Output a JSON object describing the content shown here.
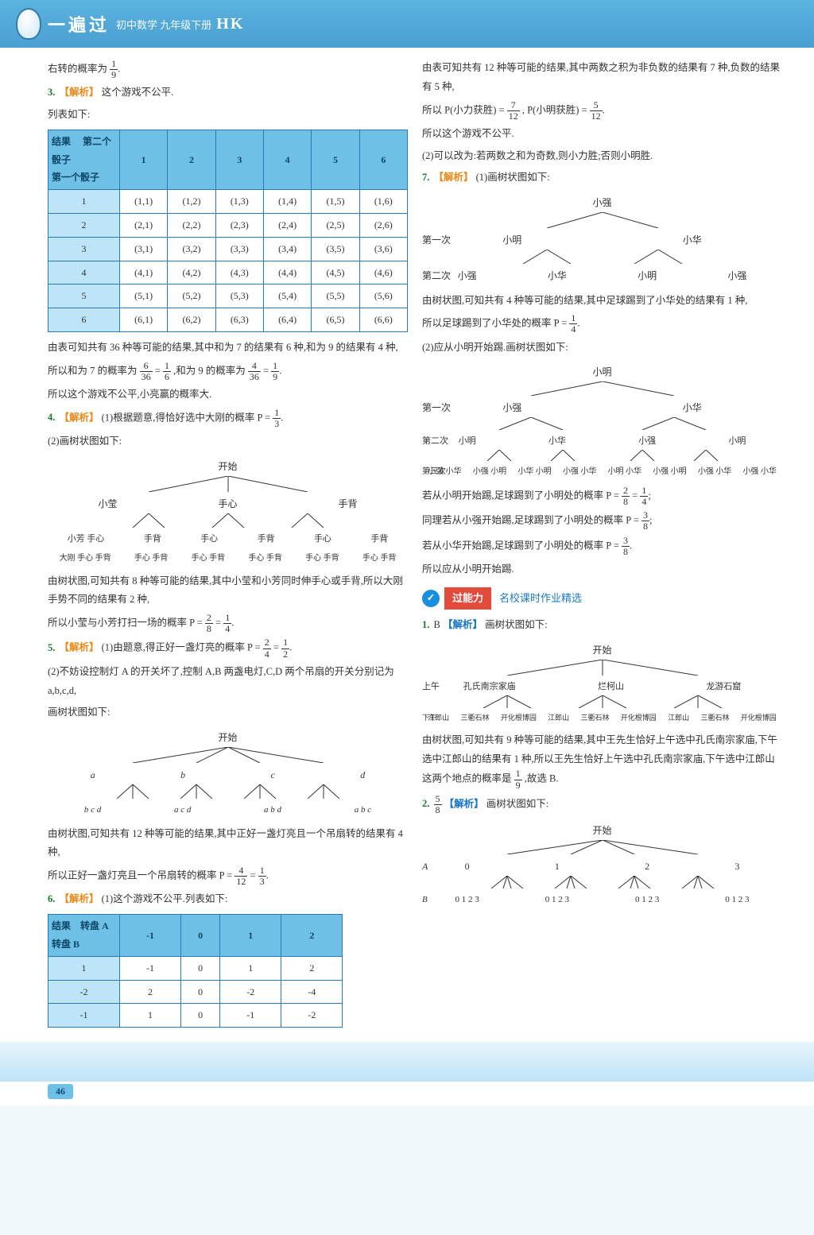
{
  "header": {
    "series": "一遍过",
    "subject": "初中数学 九年级下册",
    "code": "HK"
  },
  "left": {
    "intro": "右转的概率为",
    "intro_frac_n": "1",
    "intro_frac_d": "9",
    "q3_num": "3.",
    "q3_tag": "【解析】",
    "q3_a": "这个游戏不公平.",
    "q3_b": "列表如下:",
    "dice_header_result": "结果",
    "dice_header_col": "第二个骰子",
    "dice_header_row": "第一个骰子",
    "dice_cols": [
      "1",
      "2",
      "3",
      "4",
      "5",
      "6"
    ],
    "dice_rows": [
      "1",
      "2",
      "3",
      "4",
      "5",
      "6"
    ],
    "dice_cells": [
      [
        "(1,1)",
        "(1,2)",
        "(1,3)",
        "(1,4)",
        "(1,5)",
        "(1,6)"
      ],
      [
        "(2,1)",
        "(2,2)",
        "(2,3)",
        "(2,4)",
        "(2,5)",
        "(2,6)"
      ],
      [
        "(3,1)",
        "(3,2)",
        "(3,3)",
        "(3,4)",
        "(3,5)",
        "(3,6)"
      ],
      [
        "(4,1)",
        "(4,2)",
        "(4,3)",
        "(4,4)",
        "(4,5)",
        "(4,6)"
      ],
      [
        "(5,1)",
        "(5,2)",
        "(5,3)",
        "(5,4)",
        "(5,5)",
        "(5,6)"
      ],
      [
        "(6,1)",
        "(6,2)",
        "(6,3)",
        "(6,4)",
        "(6,5)",
        "(6,6)"
      ]
    ],
    "q3_c": "由表可知共有 36 种等可能的结果,其中和为 7 的结果有 6 种,和为 9 的结果有 4 种,",
    "q3_d_pre": "所以和为 7 的概率为",
    "q3_d_f1n": "6",
    "q3_d_f1d": "36",
    "q3_d_eq": "=",
    "q3_d_f2n": "1",
    "q3_d_f2d": "6",
    "q3_d_mid": ",和为 9 的概率为",
    "q3_d_f3n": "4",
    "q3_d_f3d": "36",
    "q3_d_f4n": "1",
    "q3_d_f4d": "9",
    "q3_e": "所以这个游戏不公平,小亮赢的概率大.",
    "q4_num": "4.",
    "q4_tag": "【解析】",
    "q4_a": "(1)根据题意,得恰好选中大刚的概率 P =",
    "q4_a_fn": "1",
    "q4_a_fd": "3",
    "q4_b": "(2)画树状图如下:",
    "tree4_root": "开始",
    "tree4_l1": [
      "小莹",
      "手心",
      "手背"
    ],
    "tree4_l2": [
      "小芳 手心",
      "手背",
      "手心",
      "手背",
      "手心",
      "手背"
    ],
    "tree4_l3": [
      "大刚 手心 手背",
      "手心 手背",
      "手心 手背",
      "手心 手背",
      "手心 手背",
      "手心 手背"
    ],
    "q4_c": "由树状图,可知共有 8 种等可能的结果,其中小莹和小芳同时伸手心或手背,所以大刚手势不同的结果有 2 种,",
    "q4_d_pre": "所以小莹与小芳打扫一场的概率 P =",
    "q4_d_f1n": "2",
    "q4_d_f1d": "8",
    "q4_d_f2n": "1",
    "q4_d_f2d": "4",
    "q5_num": "5.",
    "q5_tag": "【解析】",
    "q5_a": "(1)由题意,得正好一盏灯亮的概率 P =",
    "q5_a_f1n": "2",
    "q5_a_f1d": "4",
    "q5_a_f2n": "1",
    "q5_a_f2d": "2",
    "q5_b": "(2)不妨设控制灯 A 的开关坏了,控制 A,B 两盏电灯,C,D 两个吊扇的开关分别记为 a,b,c,d,",
    "q5_c": "画树状图如下:",
    "tree5_root": "开始",
    "tree5_l1": [
      "a",
      "b",
      "c",
      "d"
    ],
    "tree5_l2": [
      "b  c  d",
      "a  c  d",
      "a  b  d",
      "a  b  c"
    ],
    "q5_d": "由树状图,可知共有 12 种等可能的结果,其中正好一盏灯亮且一个吊扇转的结果有 4 种,",
    "q5_e_pre": "所以正好一盏灯亮且一个吊扇转的概率 P =",
    "q5_e_f1n": "4",
    "q5_e_f1d": "12",
    "q5_e_f2n": "1",
    "q5_e_f2d": "3",
    "q6_num": "6.",
    "q6_tag": "【解析】",
    "q6_a": "(1)这个游戏不公平.列表如下:",
    "spin_header_result": "结果",
    "spin_header_col": "转盘 A",
    "spin_header_row": "转盘 B",
    "spin_cols": [
      "-1",
      "0",
      "1",
      "2"
    ],
    "spin_rows": [
      "1",
      "-2",
      "-1"
    ],
    "spin_cells": [
      [
        "-1",
        "0",
        "1",
        "2"
      ],
      [
        "2",
        "0",
        "-2",
        "-4"
      ],
      [
        "1",
        "0",
        "-1",
        "-2"
      ]
    ]
  },
  "right": {
    "r1": "由表可知共有 12 种等可能的结果,其中两数之积为非负数的结果有 7 种,负数的结果有 5 种,",
    "r2_pre": "所以 P(小力获胜) =",
    "r2_f1n": "7",
    "r2_f1d": "12",
    "r2_mid": ", P(小明获胜) =",
    "r2_f2n": "5",
    "r2_f2d": "12",
    "r3": "所以这个游戏不公平.",
    "r4": "(2)可以改为:若两数之和为奇数,则小力胜;否则小明胜.",
    "q7_num": "7.",
    "q7_tag": "【解析】",
    "q7_a": "(1)画树状图如下:",
    "tree7_root": "小强",
    "tree7_l1_label": "第一次",
    "tree7_l1": [
      "小明",
      "小华"
    ],
    "tree7_l2_label": "第二次",
    "tree7_l2": [
      "小强",
      "小华",
      "小明",
      "小强"
    ],
    "q7_b": "由树状图,可知共有 4 种等可能的结果,其中足球踢到了小华处的结果有 1 种,",
    "q7_c_pre": "所以足球踢到了小华处的概率 P =",
    "q7_c_fn": "1",
    "q7_c_fd": "4",
    "q7_d": "(2)应从小明开始踢.画树状图如下:",
    "tree7b_root": "小明",
    "tree7b_l1_label": "第一次",
    "tree7b_l1": [
      "小强",
      "小华"
    ],
    "tree7b_l2_label": "第二次",
    "tree7b_l2": [
      "小明",
      "小华",
      "小强",
      "小明",
      "小强",
      "小华",
      "小明",
      "小明"
    ],
    "tree7b_l3_label": "第三次",
    "tree7b_l3": [
      "小强 小华",
      "小强 小明",
      "小华 小明",
      "小强 小华",
      "小明 小华",
      "小强 小明",
      "小强 小华",
      "小强 小华"
    ],
    "q7_e_pre": "若从小明开始踢,足球踢到了小明处的概率 P =",
    "q7_e_f1n": "2",
    "q7_e_f1d": "8",
    "q7_e_f2n": "1",
    "q7_e_f2d": "4",
    "q7_f_pre": "同理若从小强开始踢,足球踢到了小明处的概率 P =",
    "q7_f_fn": "3",
    "q7_f_fd": "8",
    "q7_g_pre": "若从小华开始踢,足球踢到了小明处的概率 P =",
    "q7_g_fn": "3",
    "q7_g_fd": "8",
    "q7_h": "所以应从小明开始踢.",
    "band_title": "过能力",
    "band_sub": "名校课时作业精选",
    "b1_num": "1.",
    "b1_ans": "B",
    "b1_tag": "【解析】",
    "b1_a": "画树状图如下:",
    "treeB1_root": "开始",
    "treeB1_l1_label": "上午",
    "treeB1_l1": [
      "孔氏南宗家庙",
      "烂柯山",
      "龙游石窟"
    ],
    "treeB1_l2_label": "下午",
    "treeB1_l2": [
      "江郎山",
      "三衢石林",
      "开化根博园",
      "江郎山",
      "三衢石林",
      "开化根博园",
      "江郎山",
      "三衢石林",
      "开化根博园"
    ],
    "b1_b": "由树状图,可知共有 9 种等可能的结果,其中王先生恰好上午选中孔氏南宗家庙,下午选中江郎山的结果有 1 种,所以王先生恰好上午选中孔氏南宗家庙,下午选中江郎山这两个地点的概率是",
    "b1_fn": "1",
    "b1_fd": "9",
    "b1_c": ",故选 B.",
    "b2_num": "2.",
    "b2_fn": "5",
    "b2_fd": "8",
    "b2_tag": "【解析】",
    "b2_a": "画树状图如下:",
    "treeB2_root": "开始",
    "treeB2_A": "A",
    "treeB2_A_vals": [
      "0",
      "1",
      "2",
      "3"
    ],
    "treeB2_B": "B",
    "treeB2_B_vals": [
      "0 1 2 3",
      "0 1 2 3",
      "0 1 2 3",
      "0 1 2 3"
    ]
  },
  "page_number": "46",
  "colors": {
    "header_bg": "#5bb3e0",
    "table_border": "#2b7bb3",
    "table_hdr": "#6fc0e6",
    "table_side": "#bde4f7",
    "qnum": "#1b7a2a",
    "tag": "#e98a1a",
    "band_red": "#e24a3b",
    "band_blue": "#1a8fe0"
  }
}
